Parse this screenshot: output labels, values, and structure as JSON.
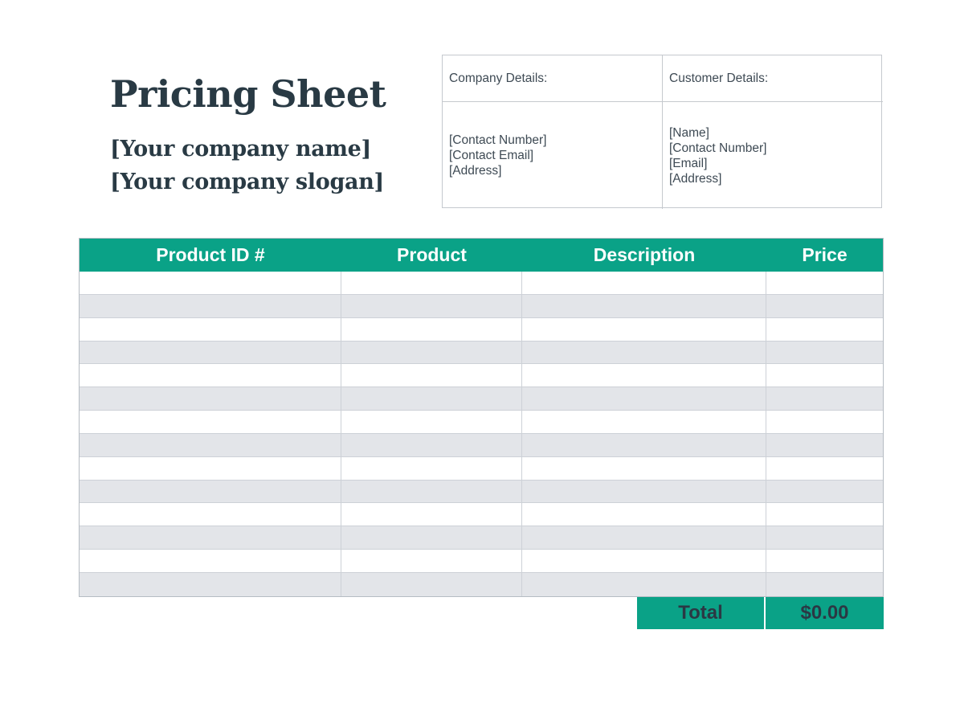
{
  "header": {
    "title": "Pricing Sheet",
    "company_name": "[Your company name]",
    "company_slogan": "[Your company slogan]"
  },
  "details_panel": {
    "company": {
      "header": "Company Details:",
      "lines": [
        "[Contact Number]",
        "[Contact Email]",
        "[Address]"
      ]
    },
    "customer": {
      "header": "Customer Details:",
      "lines": [
        "[Name]",
        "[Contact Number]",
        "[Email]",
        "[Address]"
      ]
    }
  },
  "pricing_table": {
    "columns": [
      "Product ID #",
      "Product",
      "Description",
      "Price"
    ],
    "rows": [
      [
        "",
        "",
        "",
        ""
      ],
      [
        "",
        "",
        "",
        ""
      ],
      [
        "",
        "",
        "",
        ""
      ],
      [
        "",
        "",
        "",
        ""
      ],
      [
        "",
        "",
        "",
        ""
      ],
      [
        "",
        "",
        "",
        ""
      ],
      [
        "",
        "",
        "",
        ""
      ],
      [
        "",
        "",
        "",
        ""
      ],
      [
        "",
        "",
        "",
        ""
      ],
      [
        "",
        "",
        "",
        ""
      ],
      [
        "",
        "",
        "",
        ""
      ],
      [
        "",
        "",
        "",
        ""
      ],
      [
        "",
        "",
        "",
        ""
      ],
      [
        "",
        "",
        "",
        ""
      ]
    ]
  },
  "total_row": {
    "label": "Total",
    "value": "$0.00"
  },
  "colors": {
    "accent_teal": "#0aa287",
    "dark_text": "#293a44",
    "alt_row_gray": "#e3e5e9",
    "grid_border": "#cdd1d7"
  }
}
